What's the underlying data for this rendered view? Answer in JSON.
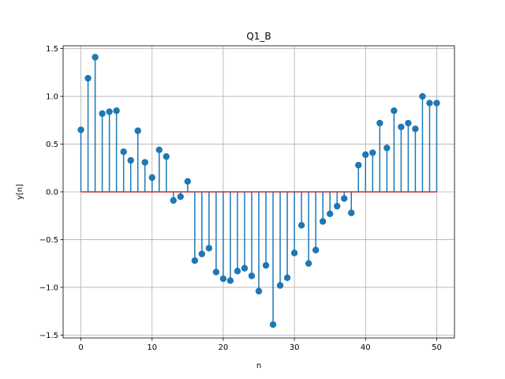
{
  "chart_data": {
    "type": "stem",
    "title": "Q1_B",
    "xlabel": "n",
    "ylabel": "y[n]",
    "xlim": [
      -2.5,
      52.5
    ],
    "ylim": [
      -1.53,
      1.53
    ],
    "xticks": [
      0,
      10,
      20,
      30,
      40,
      50
    ],
    "xtick_labels": [
      "0",
      "10",
      "20",
      "30",
      "40",
      "50"
    ],
    "yticks": [
      -1.5,
      -1.0,
      -0.5,
      0.0,
      0.5,
      1.0,
      1.5
    ],
    "ytick_labels": [
      "−1.5",
      "−1.0",
      "−0.5",
      "0.0",
      "0.5",
      "1.0",
      "1.5"
    ],
    "grid": true,
    "colors": {
      "stem": "#1f77b4",
      "baseline": "#d62728",
      "grid": "#b0b0b0"
    },
    "x": [
      0,
      1,
      2,
      3,
      4,
      5,
      6,
      7,
      8,
      9,
      10,
      11,
      12,
      13,
      14,
      15,
      16,
      17,
      18,
      19,
      20,
      21,
      22,
      23,
      24,
      25,
      26,
      27,
      28,
      29,
      30,
      31,
      32,
      33,
      34,
      35,
      36,
      37,
      38,
      39,
      40,
      41,
      42,
      43,
      44,
      45,
      46,
      47,
      48,
      49,
      50
    ],
    "values": [
      0.65,
      1.19,
      1.41,
      0.82,
      0.84,
      0.85,
      0.42,
      0.33,
      0.64,
      0.31,
      0.15,
      0.44,
      0.37,
      -0.09,
      -0.05,
      0.11,
      -0.72,
      -0.65,
      -0.59,
      -0.84,
      -0.91,
      -0.93,
      -0.83,
      -0.8,
      -0.88,
      -1.04,
      -0.77,
      -1.39,
      -0.98,
      -0.9,
      -0.64,
      -0.35,
      -0.75,
      -0.61,
      -0.31,
      -0.23,
      -0.15,
      -0.07,
      -0.22,
      0.28,
      0.39,
      0.41,
      0.72,
      0.46,
      0.85,
      0.68,
      0.72,
      0.66,
      1.0,
      0.93,
      0.93
    ]
  }
}
